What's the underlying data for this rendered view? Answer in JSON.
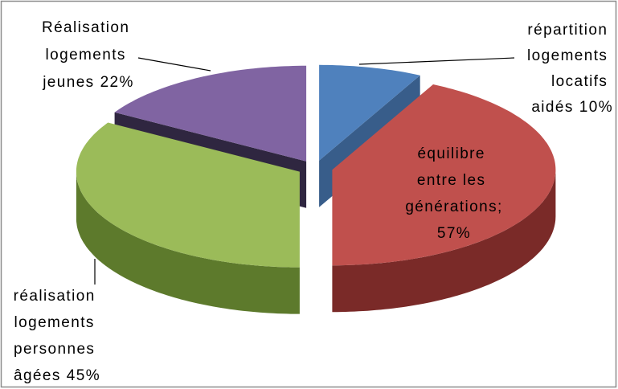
{
  "chart_data": {
    "type": "pie3d",
    "categories": [
      "répartition logements locatifs aidés",
      "équilibre entre les générations;",
      "réalisation logements personnes âgées",
      "Réalisation logements jeunes"
    ],
    "values": [
      10,
      57,
      45,
      22
    ],
    "value_labels": [
      "10%",
      "57%",
      "45%",
      "22%"
    ],
    "colors": [
      "#4f81bd",
      "#c0504d",
      "#9bbb59",
      "#8064a2"
    ],
    "side_colors": [
      "#385d8a",
      "#7a2a28",
      "#5d7a2c",
      "#2f2640"
    ]
  }
}
